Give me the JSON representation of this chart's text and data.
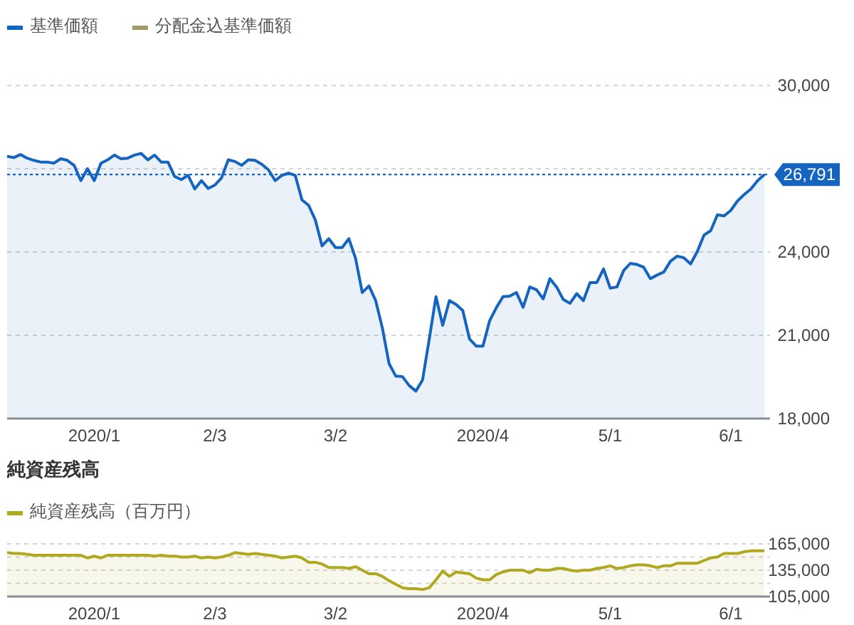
{
  "chart_data": [
    {
      "type": "area",
      "categories": [
        null,
        null,
        null,
        null,
        null,
        null,
        null,
        null,
        null,
        null,
        null,
        null,
        null,
        "2020/1",
        null,
        null,
        null,
        null,
        null,
        null,
        null,
        null,
        null,
        null,
        null,
        null,
        null,
        null,
        null,
        null,
        null,
        "2/3",
        null,
        null,
        null,
        null,
        null,
        null,
        null,
        null,
        null,
        null,
        null,
        null,
        null,
        null,
        null,
        null,
        null,
        "3/2",
        null,
        null,
        null,
        null,
        null,
        null,
        null,
        null,
        null,
        null,
        null,
        null,
        null,
        null,
        null,
        null,
        null,
        null,
        null,
        null,
        null,
        "2020/4",
        null,
        null,
        null,
        null,
        null,
        null,
        null,
        null,
        null,
        null,
        null,
        null,
        null,
        null,
        null,
        null,
        null,
        null,
        "5/1",
        null,
        null,
        null,
        null,
        null,
        null,
        null,
        null,
        null,
        null,
        null,
        null,
        null,
        null,
        null,
        null,
        null,
        "6/1",
        null,
        null,
        null,
        null,
        null
      ],
      "series": [
        {
          "name": "基準価額",
          "color": "#1565c0",
          "values": [
            27450,
            27400,
            27510,
            27380,
            27300,
            27240,
            27240,
            27200,
            27360,
            27300,
            27120,
            26570,
            27000,
            26570,
            27200,
            27320,
            27490,
            27360,
            27380,
            27490,
            27550,
            27320,
            27490,
            27240,
            27240,
            26720,
            26610,
            26760,
            26270,
            26570,
            26290,
            26410,
            26670,
            27320,
            27260,
            27120,
            27320,
            27300,
            27160,
            26960,
            26570,
            26760,
            26840,
            26760,
            25880,
            25680,
            25150,
            24220,
            24480,
            24160,
            24160,
            24480,
            23770,
            22540,
            22780,
            22250,
            21260,
            19980,
            19530,
            19510,
            19190,
            18990,
            19390,
            20870,
            22390,
            21360,
            22250,
            22110,
            21890,
            20870,
            20610,
            20610,
            21520,
            21990,
            22390,
            22410,
            22540,
            22010,
            22740,
            22640,
            22310,
            23040,
            22740,
            22290,
            22150,
            22500,
            22250,
            22900,
            22900,
            23390,
            22700,
            22740,
            23330,
            23590,
            23550,
            23450,
            23040,
            23170,
            23280,
            23670,
            23850,
            23790,
            23570,
            24020,
            24610,
            24770,
            25340,
            25300,
            25500,
            25840,
            26070,
            26270,
            26570,
            26791
          ]
        },
        {
          "name": "分配金込基準価額",
          "color": "#a39a6a",
          "values": [
            null,
            null,
            null,
            null,
            null,
            null,
            null,
            null,
            null,
            null,
            null,
            null,
            null,
            null,
            null,
            null,
            null,
            null,
            null,
            null,
            null,
            null,
            null,
            null,
            null,
            null,
            null,
            null,
            null,
            null,
            null,
            null,
            null,
            null,
            null,
            null,
            null,
            null,
            null,
            null,
            null,
            null,
            null,
            null,
            null,
            null,
            null,
            null,
            null,
            null,
            null,
            null,
            null,
            null,
            null,
            null,
            null,
            null,
            null,
            null,
            null,
            null,
            null,
            null,
            null,
            null,
            null,
            null,
            null,
            null,
            null,
            null,
            null,
            null,
            null,
            null,
            null,
            null,
            null,
            null,
            null,
            null,
            null,
            null,
            null,
            null,
            null,
            null,
            null,
            null,
            null,
            null,
            null,
            null,
            null,
            null,
            null,
            null,
            null,
            null,
            null,
            null,
            null,
            null,
            null,
            null,
            null,
            null,
            null,
            null,
            null,
            null,
            null,
            null
          ]
        }
      ],
      "ylim": [
        18000,
        30000
      ],
      "yticks": [
        {
          "value": 18000,
          "label": "18,000"
        },
        {
          "value": 21000,
          "label": "21,000"
        },
        {
          "value": 24000,
          "label": "24,000"
        },
        {
          "value": 27000,
          "label": null
        },
        {
          "value": 30000,
          "label": "30,000"
        }
      ],
      "ref_lines": [
        {
          "axis": "y",
          "value": 26791,
          "label": "26,791",
          "color": "#1565c0",
          "line_style": "dotted"
        }
      ],
      "grid": "y",
      "legend": "top left"
    },
    {
      "type": "area",
      "title": "純資産残高",
      "categories": [
        null,
        null,
        null,
        null,
        null,
        null,
        null,
        null,
        null,
        null,
        null,
        null,
        null,
        "2020/1",
        null,
        null,
        null,
        null,
        null,
        null,
        null,
        null,
        null,
        null,
        null,
        null,
        null,
        null,
        null,
        null,
        null,
        "2/3",
        null,
        null,
        null,
        null,
        null,
        null,
        null,
        null,
        null,
        null,
        null,
        null,
        null,
        null,
        null,
        null,
        null,
        "3/2",
        null,
        null,
        null,
        null,
        null,
        null,
        null,
        null,
        null,
        null,
        null,
        null,
        null,
        null,
        null,
        null,
        null,
        null,
        null,
        null,
        null,
        "2020/4",
        null,
        null,
        null,
        null,
        null,
        null,
        null,
        null,
        null,
        null,
        null,
        null,
        null,
        null,
        null,
        null,
        null,
        null,
        "5/1",
        null,
        null,
        null,
        null,
        null,
        null,
        null,
        null,
        null,
        null,
        null,
        null,
        null,
        null,
        null,
        null,
        null,
        "6/1",
        null,
        null,
        null,
        null,
        null
      ],
      "series": [
        {
          "name": "純資産残高（百万円）",
          "color": "#b0a820",
          "values": [
            155000,
            154000,
            154000,
            153000,
            152000,
            152000,
            152000,
            152000,
            152000,
            152000,
            152000,
            152000,
            149000,
            151000,
            149000,
            152000,
            152000,
            152000,
            152000,
            152000,
            152000,
            152000,
            151000,
            152000,
            151000,
            151000,
            150000,
            150000,
            151000,
            149000,
            150000,
            149000,
            150000,
            152000,
            155000,
            154000,
            153000,
            154000,
            153000,
            152000,
            151000,
            149000,
            150000,
            151000,
            149000,
            144000,
            144000,
            142000,
            138000,
            138000,
            138000,
            137000,
            139000,
            135000,
            131000,
            131000,
            128000,
            123000,
            119000,
            115000,
            114000,
            114000,
            113000,
            115000,
            124000,
            134000,
            128000,
            133000,
            132000,
            131000,
            126000,
            124000,
            124000,
            130000,
            133000,
            135000,
            135000,
            135000,
            132000,
            136000,
            135000,
            135000,
            137000,
            137000,
            135000,
            134000,
            135000,
            135000,
            137000,
            138000,
            140000,
            137000,
            138000,
            140000,
            141000,
            141000,
            140000,
            138000,
            140000,
            140000,
            143000,
            143000,
            143000,
            143000,
            146000,
            149000,
            150000,
            154000,
            154000,
            154000,
            156000,
            157000,
            157000,
            157000
          ]
        }
      ],
      "ylim": [
        105000,
        165000
      ],
      "yticks": [
        {
          "value": 105000,
          "label": "105,000"
        },
        {
          "value": 120000,
          "label": null
        },
        {
          "value": 135000,
          "label": "135,000"
        },
        {
          "value": 150000,
          "label": null
        },
        {
          "value": 165000,
          "label": "165,000"
        }
      ],
      "grid": "y",
      "legend": "top left"
    }
  ]
}
